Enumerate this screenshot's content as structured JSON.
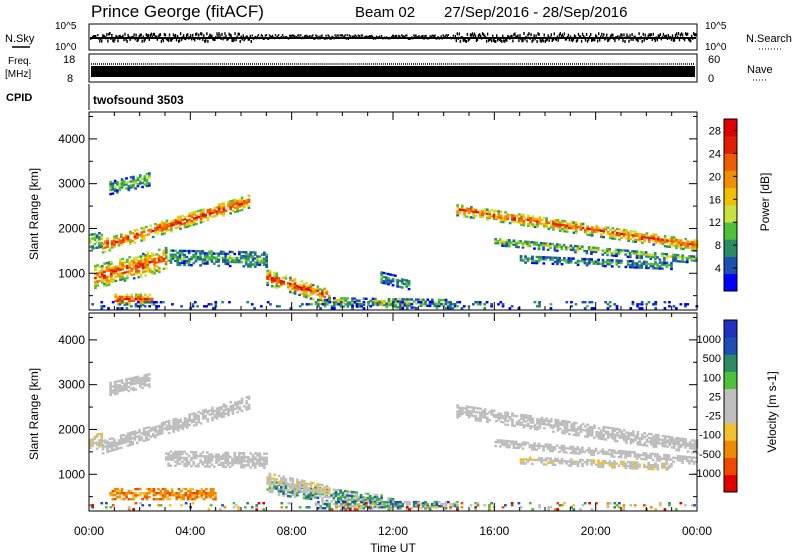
{
  "header": {
    "station": "Prince George (fitACF)",
    "beam": "Beam 02",
    "dates": "27/Sep/2016 - 28/Sep/2016"
  },
  "strips": {
    "nsky": {
      "label": "N.Sky",
      "top_tick": "10^5",
      "bottom_tick": "10^0"
    },
    "nsearch": {
      "label": "N.Search",
      "top_tick": "10^5",
      "bottom_tick": "10^0"
    },
    "freq": {
      "label_line1": "Freq.",
      "label_line2": "[MHz]",
      "top_tick": "18",
      "bottom_tick": "8"
    },
    "nave": {
      "label": "Nave",
      "top_tick": "60",
      "bottom_tick": "0"
    },
    "cpid": {
      "label": "CPID",
      "text": "twofsound 3503"
    }
  },
  "colors": {
    "power": [
      "#0000ff",
      "#1e50b4",
      "#2a8c64",
      "#4fc03a",
      "#c8e040",
      "#f0c000",
      "#f09000",
      "#f05a00",
      "#e01e00",
      "#e00000"
    ],
    "velocity": [
      "#e00000",
      "#f04a00",
      "#f08a00",
      "#f0c030",
      "#bebebe",
      "#bebebe",
      "#4fc03a",
      "#2a8c64",
      "#1e50b4",
      "#2030c0"
    ]
  },
  "chart_data": [
    {
      "type": "heatmap",
      "title": "",
      "xlabel": "",
      "ylabel": "Slant Range [km]",
      "x_ticks": [
        "00:00",
        "04:00",
        "08:00",
        "12:00",
        "16:00",
        "20:00",
        "00:00"
      ],
      "y_ticks": [
        "1000",
        "2000",
        "3000",
        "4000"
      ],
      "xlim_hours": [
        0,
        24
      ],
      "ylim_km": [
        180,
        4600
      ],
      "colorbar": {
        "label": "Power [dB]",
        "ticks": [
          "4",
          "8",
          "12",
          "16",
          "20",
          "24",
          "28"
        ],
        "range": [
          0,
          30
        ]
      },
      "bands": [
        {
          "start_h": 0.0,
          "end_h": 0.5,
          "r_start_km": 1700,
          "r_end_km": 1750,
          "width_km": 350,
          "value": 14,
          "spread": 5
        },
        {
          "start_h": 0.5,
          "end_h": 6.3,
          "r_start_km": 1600,
          "r_end_km": 2600,
          "width_km": 300,
          "value": 26,
          "spread": 4
        },
        {
          "start_h": 0.2,
          "end_h": 3.0,
          "r_start_km": 900,
          "r_end_km": 1300,
          "width_km": 500,
          "value": 25,
          "spread": 5
        },
        {
          "start_h": 3.0,
          "end_h": 7.0,
          "r_start_km": 1350,
          "r_end_km": 1300,
          "width_km": 350,
          "value": 10,
          "spread": 5
        },
        {
          "start_h": 7.0,
          "end_h": 9.5,
          "r_start_km": 900,
          "r_end_km": 450,
          "width_km": 350,
          "value": 24,
          "spread": 6
        },
        {
          "start_h": 1.0,
          "end_h": 2.5,
          "r_start_km": 400,
          "r_end_km": 400,
          "width_km": 250,
          "value": 25,
          "spread": 4
        },
        {
          "start_h": 9.0,
          "end_h": 14.5,
          "r_start_km": 350,
          "r_end_km": 300,
          "width_km": 200,
          "value": 12,
          "spread": 8
        },
        {
          "start_h": 11.5,
          "end_h": 12.6,
          "r_start_km": 900,
          "r_end_km": 750,
          "width_km": 250,
          "value": 9,
          "spread": 4
        },
        {
          "start_h": 0.8,
          "end_h": 2.4,
          "r_start_km": 2900,
          "r_end_km": 3100,
          "width_km": 300,
          "value": 12,
          "spread": 5
        },
        {
          "start_h": 14.5,
          "end_h": 24.0,
          "r_start_km": 2400,
          "r_end_km": 1600,
          "width_km": 250,
          "value": 24,
          "spread": 5
        },
        {
          "start_h": 16.0,
          "end_h": 24.0,
          "r_start_km": 1700,
          "r_end_km": 1300,
          "width_km": 180,
          "value": 12,
          "spread": 5
        },
        {
          "start_h": 17.0,
          "end_h": 23.0,
          "r_start_km": 1300,
          "r_end_km": 1150,
          "width_km": 150,
          "value": 9,
          "spread": 4
        },
        {
          "start_h": 0.0,
          "end_h": 24.0,
          "r_start_km": 280,
          "r_end_km": 280,
          "width_km": 160,
          "value": 6,
          "spread": 5,
          "density": 0.25
        }
      ]
    },
    {
      "type": "heatmap",
      "title": "",
      "xlabel": "Time UT",
      "ylabel": "Slant Range [km]",
      "x_ticks": [
        "00:00",
        "04:00",
        "08:00",
        "12:00",
        "16:00",
        "20:00",
        "00:00"
      ],
      "y_ticks": [
        "1000",
        "2000",
        "3000",
        "4000"
      ],
      "xlim_hours": [
        0,
        24
      ],
      "ylim_km": [
        180,
        4600
      ],
      "colorbar": {
        "label": "Velocity [m s-1]",
        "ticks": [
          "1000",
          "500",
          "100",
          "25",
          "-25",
          "-100",
          "-500",
          "-1000"
        ]
      },
      "bands": [
        {
          "start_h": 0.0,
          "end_h": 0.5,
          "r_start_km": 1700,
          "r_end_km": 1750,
          "width_km": 350,
          "value_idx": 4,
          "spread": 1
        },
        {
          "start_h": 0.5,
          "end_h": 6.3,
          "r_start_km": 1600,
          "r_end_km": 2600,
          "width_km": 300,
          "value_idx": 4,
          "spread": 0
        },
        {
          "start_h": 3.0,
          "end_h": 7.0,
          "r_start_km": 1350,
          "r_end_km": 1300,
          "width_km": 350,
          "value_idx": 4,
          "spread": 0
        },
        {
          "start_h": 0.8,
          "end_h": 5.0,
          "r_start_km": 550,
          "r_end_km": 550,
          "width_km": 250,
          "value_idx": 2,
          "spread": 1
        },
        {
          "start_h": 7.0,
          "end_h": 12.0,
          "r_start_km": 700,
          "r_end_km": 350,
          "width_km": 300,
          "value_idx": 6,
          "spread": 2
        },
        {
          "start_h": 7.0,
          "end_h": 9.5,
          "r_start_km": 900,
          "r_end_km": 600,
          "width_km": 250,
          "value_idx": 4,
          "spread": 1
        },
        {
          "start_h": 9.0,
          "end_h": 14.5,
          "r_start_km": 300,
          "r_end_km": 300,
          "width_km": 150,
          "value_idx": 6,
          "spread": 3
        },
        {
          "start_h": 0.8,
          "end_h": 2.4,
          "r_start_km": 2900,
          "r_end_km": 3100,
          "width_km": 300,
          "value_idx": 4,
          "spread": 0
        },
        {
          "start_h": 14.5,
          "end_h": 24.0,
          "r_start_km": 2400,
          "r_end_km": 1600,
          "width_km": 300,
          "value_idx": 4,
          "spread": 0
        },
        {
          "start_h": 16.0,
          "end_h": 24.0,
          "r_start_km": 1700,
          "r_end_km": 1300,
          "width_km": 180,
          "value_idx": 4,
          "spread": 0
        },
        {
          "start_h": 17.0,
          "end_h": 23.0,
          "r_start_km": 1300,
          "r_end_km": 1150,
          "width_km": 150,
          "value_idx": 4,
          "spread": 1
        },
        {
          "start_h": 0.0,
          "end_h": 24.0,
          "r_start_km": 280,
          "r_end_km": 280,
          "width_km": 160,
          "value_idx": 4,
          "spread": 4,
          "density": 0.2
        }
      ]
    }
  ]
}
